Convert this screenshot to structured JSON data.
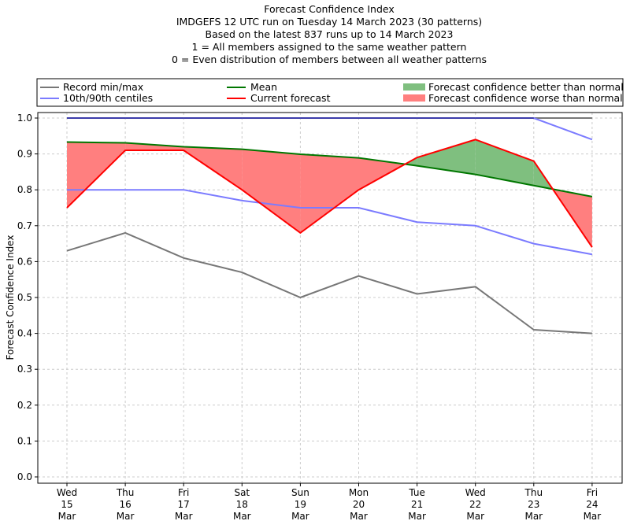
{
  "chart_data": {
    "type": "line",
    "title_lines": [
      "Forecast Confidence Index",
      "IMDGEFS 12 UTC run on Tuesday 14 March 2023 (30 patterns)",
      "Based on the latest 837 runs up to 14 March 2023",
      "1 = All members assigned to the same weather pattern",
      "0 = Even distribution of members between all weather patterns"
    ],
    "xlabel": "",
    "ylabel": "Forecast Confidence Index",
    "ylim": [
      0.0,
      1.0
    ],
    "yticks": [
      "0.0",
      "0.1",
      "0.2",
      "0.3",
      "0.4",
      "0.5",
      "0.6",
      "0.7",
      "0.8",
      "0.9",
      "1.0"
    ],
    "grid": true,
    "legend_position": "top",
    "categories": [
      [
        "Wed",
        "15",
        "Mar"
      ],
      [
        "Thu",
        "16",
        "Mar"
      ],
      [
        "Fri",
        "17",
        "Mar"
      ],
      [
        "Sat",
        "18",
        "Mar"
      ],
      [
        "Sun",
        "19",
        "Mar"
      ],
      [
        "Mon",
        "20",
        "Mar"
      ],
      [
        "Tue",
        "21",
        "Mar"
      ],
      [
        "Wed",
        "22",
        "Mar"
      ],
      [
        "Thu",
        "23",
        "Mar"
      ],
      [
        "Fri",
        "24",
        "Mar"
      ]
    ],
    "series": [
      {
        "name": "Record max",
        "legend": "Record min/max",
        "color": "#777777",
        "values": [
          1.0,
          1.0,
          1.0,
          1.0,
          1.0,
          1.0,
          1.0,
          1.0,
          1.0,
          1.0
        ]
      },
      {
        "name": "Record min",
        "legend": "Record min/max",
        "color": "#777777",
        "values": [
          0.63,
          0.68,
          0.61,
          0.57,
          0.5,
          0.56,
          0.51,
          0.53,
          0.41,
          0.4
        ]
      },
      {
        "name": "90th centile",
        "legend": "10th/90th centiles",
        "color": "#7b7bff",
        "values": [
          1.0,
          1.0,
          1.0,
          1.0,
          1.0,
          1.0,
          1.0,
          1.0,
          1.0,
          0.94
        ]
      },
      {
        "name": "10th centile",
        "legend": "10th/90th centiles",
        "color": "#7b7bff",
        "values": [
          0.8,
          0.8,
          0.8,
          0.77,
          0.75,
          0.75,
          0.71,
          0.7,
          0.65,
          0.62
        ]
      },
      {
        "name": "Mean",
        "legend": "Mean",
        "color": "#007700",
        "values": [
          0.933,
          0.931,
          0.92,
          0.913,
          0.899,
          0.889,
          0.867,
          0.843,
          0.812,
          0.781
        ]
      },
      {
        "name": "Current forecast",
        "legend": "Current forecast",
        "color": "#ff0000",
        "values": [
          0.75,
          0.91,
          0.91,
          0.8,
          0.68,
          0.8,
          0.89,
          0.94,
          0.88,
          0.64
        ]
      }
    ],
    "fills": [
      {
        "name": "Forecast confidence better than normal",
        "color": "#7fbf7f",
        "condition": "current > mean"
      },
      {
        "name": "Forecast confidence worse than normal",
        "color": "#ff7f7f",
        "condition": "current < mean"
      }
    ],
    "legend": [
      {
        "label": "Record min/max",
        "kind": "line",
        "color": "#777777"
      },
      {
        "label": "10th/90th centiles",
        "kind": "line",
        "color": "#7b7bff"
      },
      {
        "label": "Mean",
        "kind": "line",
        "color": "#007700"
      },
      {
        "label": "Current forecast",
        "kind": "line",
        "color": "#ff0000"
      },
      {
        "label": "Forecast confidence better than normal",
        "kind": "patch",
        "color": "#7fbf7f"
      },
      {
        "label": "Forecast confidence worse than normal",
        "kind": "patch",
        "color": "#ff7f7f"
      }
    ]
  }
}
